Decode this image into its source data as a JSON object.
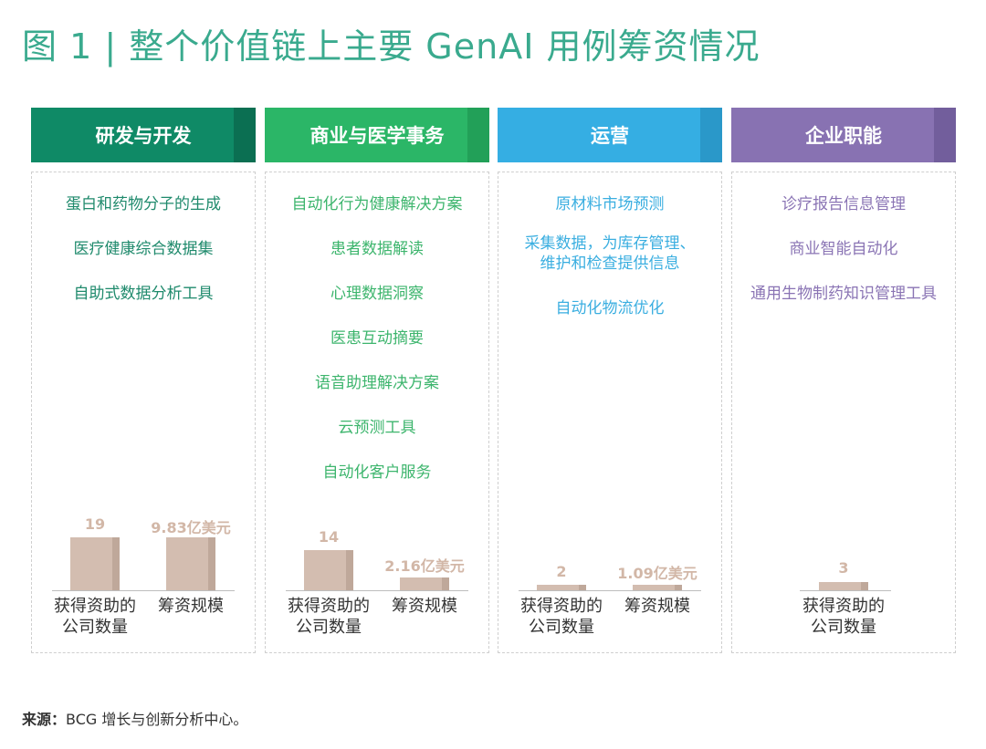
{
  "title": "图 1 | 整个价值链上主要 GenAI 用例筹资情况",
  "colors": {
    "title": "#3aaa8e",
    "rd": "#0f8a66",
    "rd_tab": "#0b6f52",
    "rd_text": "#1f8a6c",
    "biz": "#2bb667",
    "biz_tab": "#22a058",
    "biz_text": "#3db56d",
    "ops": "#35aee3",
    "ops_tab": "#2a98c9",
    "ops_text": "#3aaee0",
    "corp": "#8872b2",
    "corp_tab": "#725e9c",
    "corp_text": "#8a74b4",
    "bar": "#d3bdb0"
  },
  "columns": [
    {
      "header": "研发与开发",
      "items": [
        "蛋白和药物分子的生成",
        "医疗健康综合数据集",
        "自助式数据分析工具"
      ],
      "metrics": [
        {
          "label": "获得资助的\n公司数量",
          "value": "19",
          "number": 19
        },
        {
          "label": "筹资规模",
          "value": "9.83亿美元",
          "number": 9.83
        }
      ]
    },
    {
      "header": "商业与医学事务",
      "items": [
        "自动化行为健康解决方案",
        "患者数据解读",
        "心理数据洞察",
        "医患互动摘要",
        "语音助理解决方案",
        "云预测工具",
        "自动化客户服务"
      ],
      "metrics": [
        {
          "label": "获得资助的\n公司数量",
          "value": "14",
          "number": 14
        },
        {
          "label": "筹资规模",
          "value": "2.16亿美元",
          "number": 2.16
        }
      ]
    },
    {
      "header": "运营",
      "items": [
        "原材料市场预测",
        "采集数据，为库存管理、\n维护和检查提供信息",
        "自动化物流优化"
      ],
      "metrics": [
        {
          "label": "获得资助的\n公司数量",
          "value": "2",
          "number": 2
        },
        {
          "label": "筹资规模",
          "value": "1.09亿美元",
          "number": 1.09
        }
      ]
    },
    {
      "header": "企业职能",
      "items": [
        "诊疗报告信息管理",
        "商业智能自动化",
        "通用生物制药知识管理工具"
      ],
      "metrics": [
        {
          "label": "获得资助的\n公司数量",
          "value": "3",
          "number": 3
        }
      ]
    }
  ],
  "source": {
    "label": "来源：",
    "text": "BCG 增长与创新分析中心。"
  }
}
